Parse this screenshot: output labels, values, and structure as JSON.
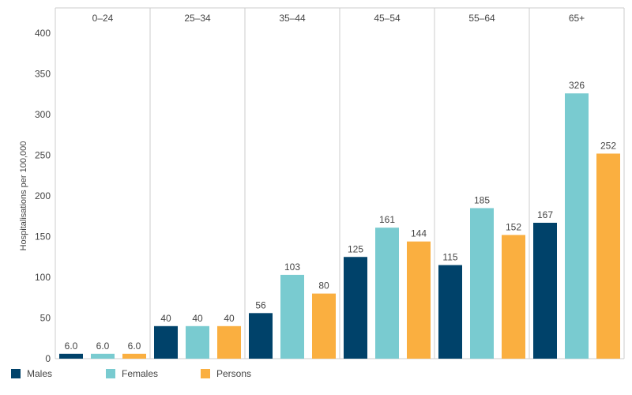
{
  "chart_data": {
    "type": "bar",
    "ylabel": "Hospitalisations per 100,000",
    "ylim": [
      0,
      400
    ],
    "yticks": [
      0,
      50,
      100,
      150,
      200,
      250,
      300,
      350,
      400
    ],
    "grid": false,
    "legend_position": "bottom-left",
    "categories": [
      "0–24",
      "25–34",
      "35–44",
      "45–54",
      "55–64",
      "65+"
    ],
    "series": [
      {
        "name": "Males",
        "color": "#00426a",
        "values": [
          6.0,
          40,
          56,
          125,
          115,
          167
        ],
        "labels": [
          "6.0",
          "40",
          "56",
          "125",
          "115",
          "167"
        ]
      },
      {
        "name": "Females",
        "color": "#79cbd0",
        "values": [
          6.0,
          40,
          103,
          161,
          185,
          326
        ],
        "labels": [
          "6.0",
          "40",
          "103",
          "161",
          "185",
          "326"
        ]
      },
      {
        "name": "Persons",
        "color": "#faaf40",
        "values": [
          6.0,
          40,
          80,
          144,
          152,
          252
        ],
        "labels": [
          "6.0",
          "40",
          "80",
          "144",
          "152",
          "252"
        ]
      }
    ]
  }
}
